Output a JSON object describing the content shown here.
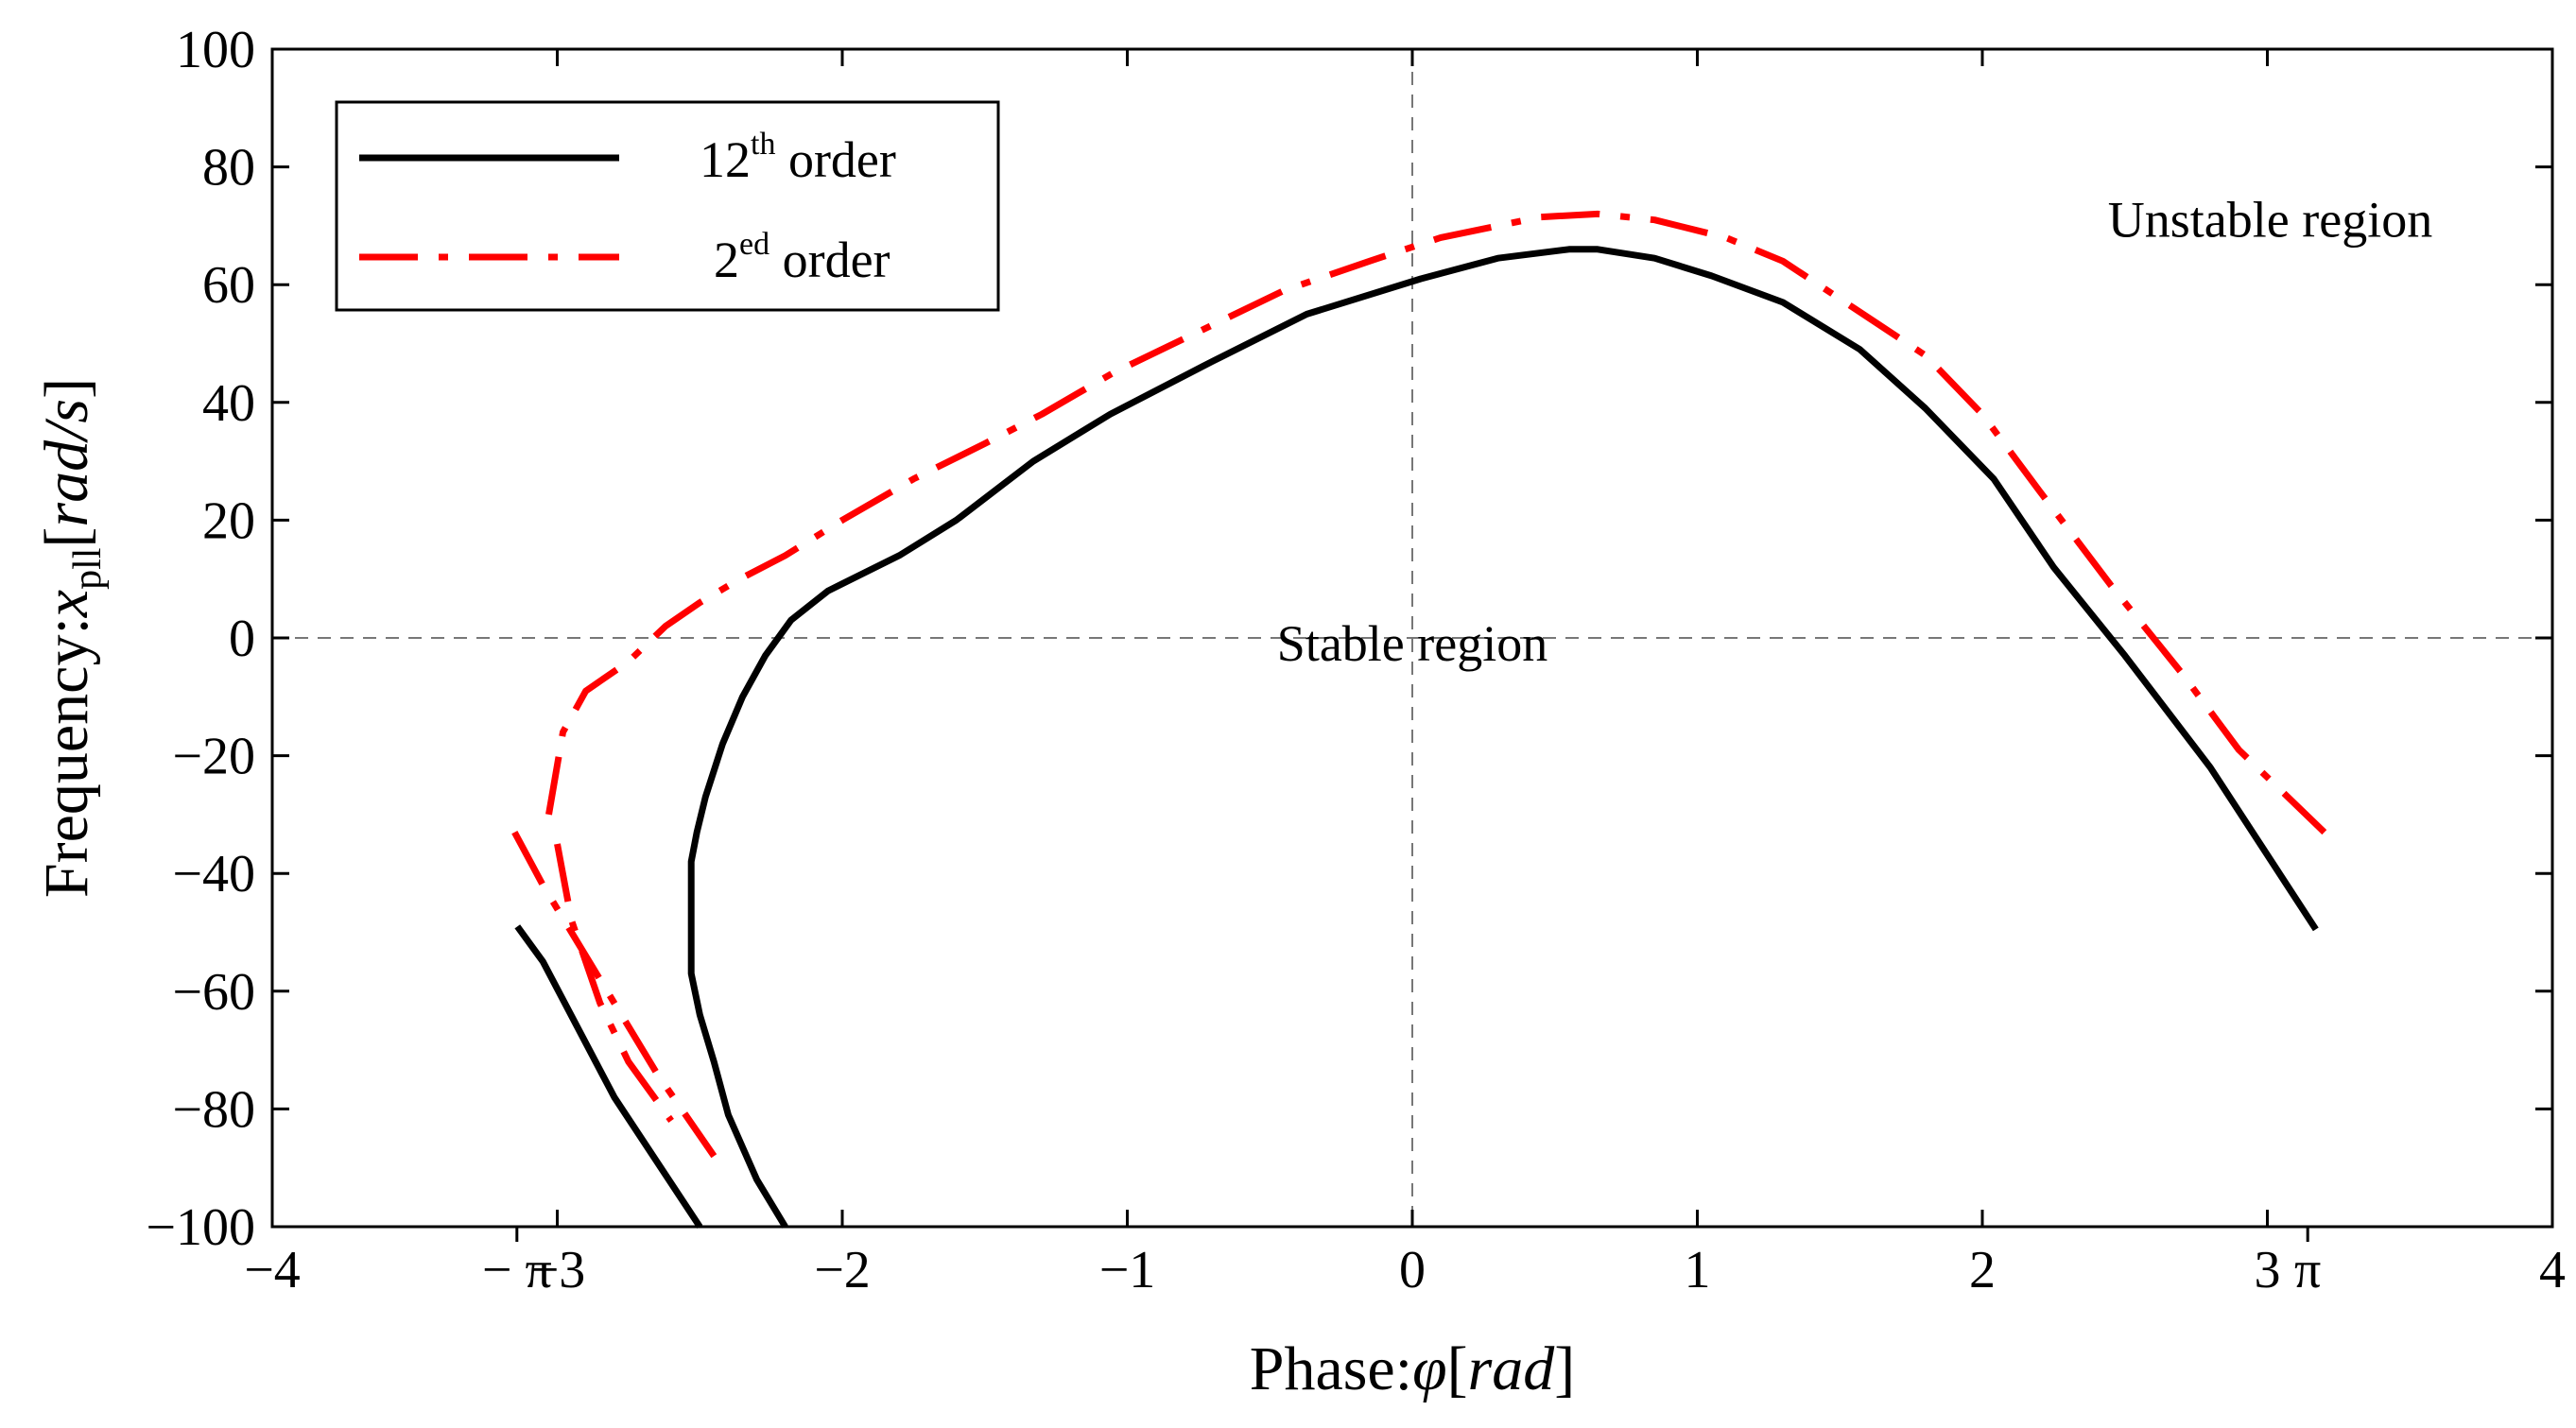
{
  "chart_data": {
    "type": "line",
    "xlabel": {
      "prefix": "Phase:",
      "symbol": "φ",
      "unit_open": "[",
      "unit": "rad",
      "unit_close": "]"
    },
    "ylabel": {
      "prefix": "Frequency:",
      "symbol": "x",
      "subscript": "pll",
      "unit_open": "[",
      "unit": "rad/s",
      "unit_close": "]"
    },
    "xlim": [
      -4,
      4
    ],
    "ylim": [
      -100,
      100
    ],
    "x_ticks": [
      -4,
      -3,
      -2,
      -1,
      0,
      1,
      2,
      3,
      4
    ],
    "x_tick_labels": [
      "−4",
      "−3",
      "−2",
      "−1",
      "0",
      "1",
      "2",
      "3",
      "4"
    ],
    "y_ticks": [
      -100,
      -80,
      -60,
      -40,
      -20,
      0,
      20,
      40,
      60,
      80,
      100
    ],
    "y_tick_labels": [
      "−100",
      "−80",
      "−60",
      "−40",
      "−20",
      "0",
      "20",
      "40",
      "60",
      "80",
      "100"
    ],
    "pi_ticks": [
      {
        "x": -3.1416,
        "label": "− π"
      },
      {
        "x": 3.1416,
        "label": "π"
      }
    ],
    "reference_lines": [
      {
        "axis": "x",
        "value": 0
      },
      {
        "axis": "y",
        "value": 0
      }
    ],
    "grid": false,
    "legend_position": "top-left",
    "annotations": [
      {
        "text": "Unstable region",
        "x": 3.01,
        "y": 71
      },
      {
        "text": "Stable region",
        "x": 0.0,
        "y": -1
      }
    ],
    "series": [
      {
        "name": {
          "base": "12",
          "sup": "th",
          "rest": " order"
        },
        "color": "#000000",
        "style": "solid",
        "segments": [
          [
            [
              -3.14,
              -49
            ],
            [
              -3.05,
              -55
            ],
            [
              -2.8,
              -78
            ],
            [
              -2.5,
              -100
            ]
          ],
          [
            [
              -2.2,
              -100
            ],
            [
              -2.3,
              -92
            ],
            [
              -2.4,
              -81
            ],
            [
              -2.45,
              -72
            ],
            [
              -2.5,
              -64
            ],
            [
              -2.53,
              -57
            ],
            [
              -2.53,
              -49
            ],
            [
              -2.53,
              -38
            ],
            [
              -2.51,
              -33
            ],
            [
              -2.48,
              -27
            ],
            [
              -2.42,
              -18
            ],
            [
              -2.35,
              -10
            ],
            [
              -2.27,
              -3
            ],
            [
              -2.18,
              3
            ],
            [
              -2.05,
              8
            ],
            [
              -1.8,
              14
            ],
            [
              -1.6,
              20
            ],
            [
              -1.33,
              30
            ],
            [
              -1.06,
              38
            ],
            [
              -0.7,
              47
            ],
            [
              -0.37,
              55
            ],
            [
              0.03,
              61
            ],
            [
              0.3,
              64.5
            ],
            [
              0.55,
              66
            ],
            [
              0.65,
              66
            ],
            [
              0.85,
              64.5
            ],
            [
              1.05,
              61.5
            ],
            [
              1.3,
              57
            ],
            [
              1.57,
              49
            ],
            [
              1.8,
              39
            ],
            [
              2.04,
              27
            ],
            [
              2.25,
              12
            ],
            [
              2.5,
              -3
            ],
            [
              2.8,
              -22
            ],
            [
              3.17,
              -49.5
            ]
          ]
        ]
      },
      {
        "name": {
          "base": "2",
          "sup": "ed",
          "rest": " order"
        },
        "color": "#ff0000",
        "style": "dashdot",
        "segments": [
          [
            [
              -3.15,
              -33
            ],
            [
              -3.05,
              -42
            ],
            [
              -2.85,
              -58
            ],
            [
              -2.65,
              -74
            ],
            [
              -2.45,
              -88
            ]
          ],
          [
            [
              -3.0,
              -35
            ],
            [
              -2.95,
              -48
            ],
            [
              -2.85,
              -62
            ],
            [
              -2.75,
              -72
            ],
            [
              -2.6,
              -82
            ]
          ],
          [
            [
              -3.03,
              -30
            ],
            [
              -2.98,
              -16
            ],
            [
              -2.9,
              -9
            ],
            [
              -2.75,
              -4
            ],
            [
              -2.62,
              2
            ],
            [
              -2.5,
              6
            ],
            [
              -2.36,
              10
            ],
            [
              -2.2,
              14
            ],
            [
              -2.0,
              20
            ],
            [
              -1.75,
              27
            ],
            [
              -1.5,
              33
            ],
            [
              -1.3,
              38
            ],
            [
              -1.05,
              45
            ],
            [
              -0.75,
              52
            ],
            [
              -0.45,
              59
            ],
            [
              -0.15,
              64
            ],
            [
              0.1,
              68
            ],
            [
              0.45,
              71.5
            ],
            [
              0.65,
              72
            ],
            [
              0.85,
              71
            ],
            [
              1.1,
              68
            ],
            [
              1.3,
              64
            ],
            [
              1.55,
              56
            ],
            [
              1.8,
              48
            ],
            [
              2.0,
              38
            ],
            [
              2.2,
              25
            ],
            [
              2.45,
              9
            ],
            [
              2.7,
              -6
            ],
            [
              2.9,
              -19
            ],
            [
              3.2,
              -33
            ]
          ]
        ]
      }
    ]
  }
}
